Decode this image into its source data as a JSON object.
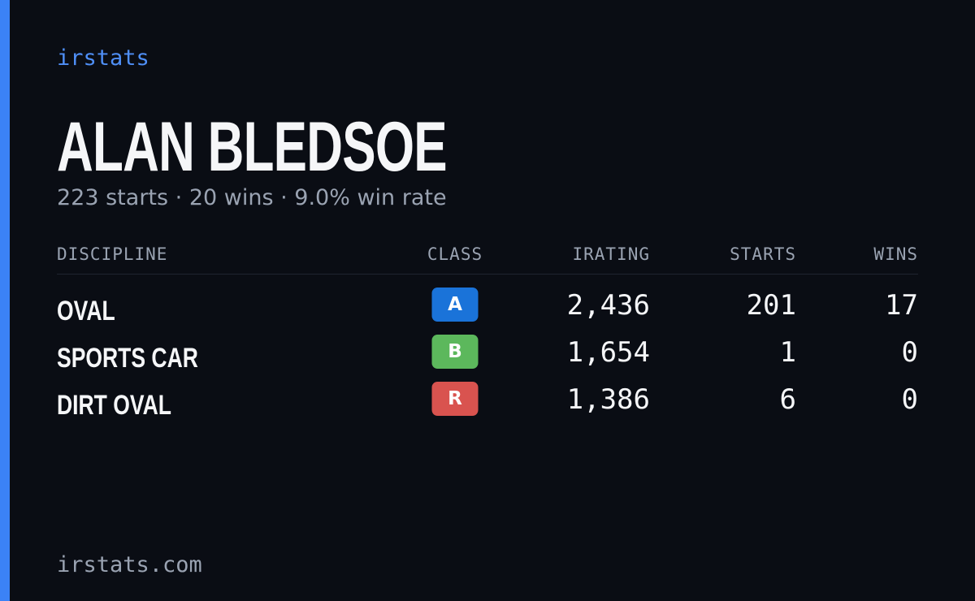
{
  "header": {
    "brand": "irstats",
    "name": "ALAN BLEDSOE",
    "summary": "223 starts · 20 wins · 9.0% win rate"
  },
  "table": {
    "columns": [
      "DISCIPLINE",
      "CLASS",
      "IRATING",
      "STARTS",
      "WINS"
    ],
    "rows": [
      [
        "OVAL",
        "A",
        "2,436",
        "201",
        "17"
      ],
      [
        "SPORTS CAR",
        "B",
        "1,654",
        "1",
        "0"
      ],
      [
        "DIRT OVAL",
        "R",
        "1,386",
        "6",
        "0"
      ]
    ]
  },
  "footer": {
    "url": "irstats.com"
  }
}
